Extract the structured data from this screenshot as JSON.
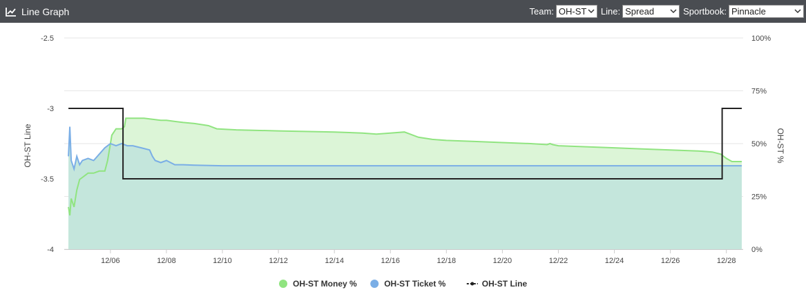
{
  "header": {
    "title": "Line Graph",
    "icon": "line-chart-icon",
    "team_label": "Team:",
    "team_value": "OH-ST",
    "line_label": "Line:",
    "line_value": "Spread",
    "sportbook_label": "Sportbook:",
    "sportbook_value": "Pinnacle"
  },
  "chart_data": {
    "type": "line",
    "y_left_label": "OH-ST Line",
    "y_right_label": "OH-ST %",
    "y_left_ticks": [
      "-2.5",
      "-3",
      "-3.5",
      "-4"
    ],
    "y_left_range": [
      -4,
      -2.5
    ],
    "y_right_ticks": [
      "100%",
      "75%",
      "50%",
      "25%",
      "0%"
    ],
    "y_right_range": [
      0,
      100
    ],
    "x_ticks": [
      "12/06",
      "12/08",
      "12/10",
      "12/12",
      "12/14",
      "12/16",
      "12/18",
      "12/20",
      "12/22",
      "12/24",
      "12/26",
      "12/28"
    ],
    "x_range_days": [
      4.35,
      28.6
    ],
    "grid": true,
    "legend_position": "bottom",
    "series": [
      {
        "name": "OH-ST Money %",
        "axis": "right",
        "color": "#90e480",
        "fill": "#dcf5d7",
        "points": [
          [
            4.5,
            20
          ],
          [
            4.55,
            16
          ],
          [
            4.6,
            24
          ],
          [
            4.7,
            20
          ],
          [
            4.8,
            28
          ],
          [
            4.9,
            33
          ],
          [
            5.0,
            34
          ],
          [
            5.2,
            36
          ],
          [
            5.4,
            36
          ],
          [
            5.6,
            37
          ],
          [
            5.8,
            37
          ],
          [
            5.9,
            42
          ],
          [
            6.0,
            50
          ],
          [
            6.05,
            54
          ],
          [
            6.2,
            57
          ],
          [
            6.4,
            57
          ],
          [
            6.5,
            58
          ],
          [
            6.55,
            62
          ],
          [
            6.9,
            62
          ],
          [
            7.2,
            62
          ],
          [
            7.5,
            61.5
          ],
          [
            7.8,
            61
          ],
          [
            8.0,
            61
          ],
          [
            8.6,
            60
          ],
          [
            9.0,
            59.5
          ],
          [
            9.5,
            58.5
          ],
          [
            9.8,
            57
          ],
          [
            10.5,
            56.5
          ],
          [
            12.0,
            56
          ],
          [
            14.0,
            55.5
          ],
          [
            15.0,
            55
          ],
          [
            15.5,
            54.5
          ],
          [
            16.0,
            55
          ],
          [
            16.5,
            55.5
          ],
          [
            16.7,
            54.5
          ],
          [
            17.0,
            53
          ],
          [
            17.5,
            52
          ],
          [
            18.0,
            51.5
          ],
          [
            19.0,
            51
          ],
          [
            20.0,
            50.5
          ],
          [
            21.0,
            50
          ],
          [
            21.6,
            49.5
          ],
          [
            21.7,
            50
          ],
          [
            21.8,
            49.5
          ],
          [
            22.0,
            49
          ],
          [
            23.0,
            48.5
          ],
          [
            24.0,
            48
          ],
          [
            25.0,
            47.5
          ],
          [
            26.0,
            47
          ],
          [
            27.0,
            46.5
          ],
          [
            27.5,
            46
          ],
          [
            27.8,
            45
          ],
          [
            28.0,
            43
          ],
          [
            28.2,
            41.5
          ],
          [
            28.55,
            41.5
          ]
        ]
      },
      {
        "name": "OH-ST Ticket %",
        "axis": "right",
        "color": "#7aaee6",
        "fill": "#c4e6dc",
        "points": [
          [
            4.5,
            44
          ],
          [
            4.55,
            58
          ],
          [
            4.6,
            42
          ],
          [
            4.7,
            38
          ],
          [
            4.8,
            44
          ],
          [
            4.9,
            40
          ],
          [
            5.0,
            42
          ],
          [
            5.2,
            43
          ],
          [
            5.4,
            42
          ],
          [
            5.6,
            45
          ],
          [
            5.8,
            48
          ],
          [
            5.9,
            49
          ],
          [
            6.0,
            50
          ],
          [
            6.2,
            49
          ],
          [
            6.4,
            50
          ],
          [
            6.6,
            49
          ],
          [
            6.8,
            49
          ],
          [
            7.1,
            48
          ],
          [
            7.4,
            47
          ],
          [
            7.5,
            44
          ],
          [
            7.6,
            42
          ],
          [
            7.8,
            41
          ],
          [
            8.0,
            42
          ],
          [
            8.3,
            40
          ],
          [
            8.6,
            40
          ],
          [
            9.0,
            39.8
          ],
          [
            10.0,
            39.5
          ],
          [
            12.0,
            39.5
          ],
          [
            16.0,
            39.5
          ],
          [
            20.0,
            39.5
          ],
          [
            24.0,
            39.5
          ],
          [
            28.55,
            39.5
          ]
        ]
      },
      {
        "name": "OH-ST Line",
        "axis": "left",
        "color": "#222222",
        "step_points": [
          [
            4.5,
            -3
          ],
          [
            6.45,
            -3
          ],
          [
            6.45,
            -3.5
          ],
          [
            27.85,
            -3.5
          ],
          [
            27.85,
            -3
          ],
          [
            28.55,
            -3
          ]
        ]
      }
    ]
  }
}
